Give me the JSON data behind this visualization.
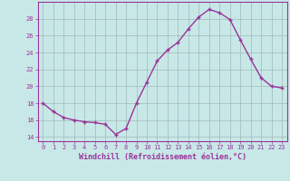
{
  "x": [
    0,
    1,
    2,
    3,
    4,
    5,
    6,
    7,
    8,
    9,
    10,
    11,
    12,
    13,
    14,
    15,
    16,
    17,
    18,
    19,
    20,
    21,
    22,
    23
  ],
  "y": [
    18.0,
    17.0,
    16.3,
    16.0,
    15.8,
    15.7,
    15.5,
    14.3,
    15.0,
    18.0,
    20.5,
    23.0,
    24.3,
    25.2,
    26.8,
    28.2,
    29.1,
    28.7,
    27.9,
    25.5,
    23.2,
    21.0,
    20.0,
    19.8
  ],
  "line_color": "#993399",
  "marker": "+",
  "marker_size": 3.5,
  "line_width": 1.0,
  "background_color": "#c8e8e8",
  "grid_color": "#a0b8b8",
  "xlabel": "Windchill (Refroidissement éolien,°C)",
  "ylim": [
    13.5,
    30.0
  ],
  "xlim": [
    -0.5,
    23.5
  ],
  "yticks": [
    14,
    16,
    18,
    20,
    22,
    24,
    26,
    28
  ],
  "xticks": [
    0,
    1,
    2,
    3,
    4,
    5,
    6,
    7,
    8,
    9,
    10,
    11,
    12,
    13,
    14,
    15,
    16,
    17,
    18,
    19,
    20,
    21,
    22,
    23
  ],
  "xtick_labels": [
    "0",
    "1",
    "2",
    "3",
    "4",
    "5",
    "6",
    "7",
    "8",
    "9",
    "10",
    "11",
    "12",
    "13",
    "14",
    "15",
    "16",
    "17",
    "18",
    "19",
    "20",
    "21",
    "22",
    "23"
  ],
  "tick_color": "#993399",
  "tick_fontsize": 5.0,
  "xlabel_fontsize": 6.0,
  "axis_color": "#993399",
  "markeredgewidth": 1.0
}
